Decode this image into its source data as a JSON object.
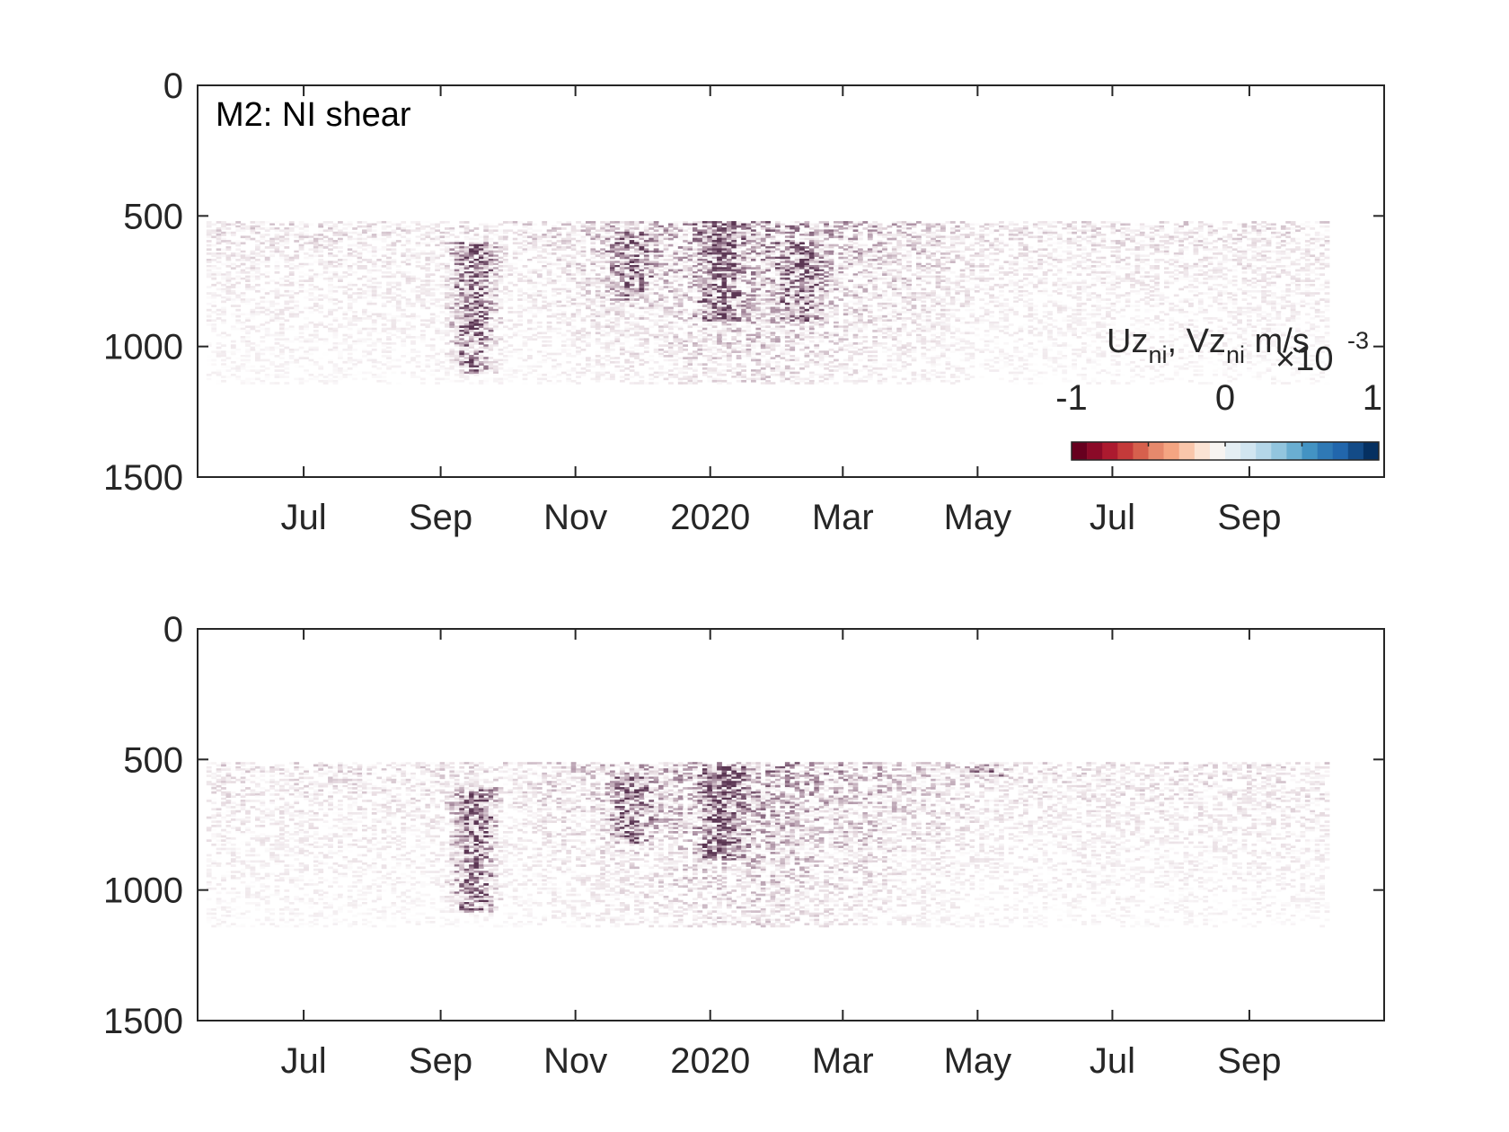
{
  "colors": {
    "axis": "#262626",
    "background": "#ffffff",
    "colormap": [
      "#67001f",
      "#8b0a28",
      "#ac1a2f",
      "#c43a3a",
      "#d6604d",
      "#e6896c",
      "#f4a582",
      "#f9c6ab",
      "#fbe3d4",
      "#f7f4f1",
      "#e4eef3",
      "#d1e5f0",
      "#b4d6e8",
      "#92c5de",
      "#6aaed1",
      "#4393c3",
      "#2f79b5",
      "#2166ac",
      "#134b87",
      "#053061"
    ],
    "data_tint_dark": "#5b3653",
    "data_tint_mid": "#a5889c",
    "data_tint_light": "#e8dde2"
  },
  "chart_data": [
    {
      "type": "heatmap",
      "title": "M2: NI shear",
      "xlabel": "",
      "ylabel": "",
      "x_ticks": [
        "Jul",
        "Sep",
        "Nov",
        "2020",
        "Mar",
        "May",
        "Jul",
        "Sep"
      ],
      "x_tick_dates": [
        "2019-07-01",
        "2019-09-01",
        "2019-11-01",
        "2020-01-01",
        "2020-03-01",
        "2020-05-01",
        "2020-07-01",
        "2020-09-01"
      ],
      "xlim": [
        "2019-05-14",
        "2020-11-01"
      ],
      "data_x_range": [
        "2019-05-18",
        "2020-10-06"
      ],
      "y_ticks": [
        "0",
        "500",
        "1000",
        "1500"
      ],
      "y_tick_values": [
        0,
        500,
        1000,
        1500
      ],
      "ylim": [
        0,
        1500
      ],
      "y_reversed": true,
      "data_y_range": [
        520,
        1140
      ],
      "grid": false,
      "colorbar": {
        "label_prefix": "Uz",
        "label_sub1": "ni",
        "label_mid": ", Vz",
        "label_sub2": "ni",
        "label_units": " m/s",
        "multiplier": "×10",
        "exponent": "-3",
        "tick_labels": [
          "-1",
          "0",
          "1"
        ],
        "tick_values": [
          -1,
          0,
          1
        ],
        "clim": [
          -1,
          1
        ],
        "placement": "inside lower-right",
        "levels": 20
      },
      "features": [
        {
          "date": "2019-09-15",
          "depth_top": 600,
          "depth_bottom": 1100,
          "strength": 1.0
        },
        {
          "date": "2020-01-05",
          "depth_top": 520,
          "depth_bottom": 900,
          "strength": 0.9
        },
        {
          "date": "2019-11-25",
          "depth_top": 560,
          "depth_bottom": 820,
          "strength": 0.7
        },
        {
          "date": "2020-02-10",
          "depth_top": 600,
          "depth_bottom": 900,
          "strength": 0.7
        }
      ]
    },
    {
      "type": "heatmap",
      "title": "",
      "xlabel": "",
      "ylabel": "",
      "x_ticks": [
        "Jul",
        "Sep",
        "Nov",
        "2020",
        "Mar",
        "May",
        "Jul",
        "Sep"
      ],
      "x_tick_dates": [
        "2019-07-01",
        "2019-09-01",
        "2019-11-01",
        "2020-01-01",
        "2020-03-01",
        "2020-05-01",
        "2020-07-01",
        "2020-09-01"
      ],
      "xlim": [
        "2019-05-14",
        "2020-11-01"
      ],
      "data_x_range": [
        "2019-05-18",
        "2020-10-06"
      ],
      "y_ticks": [
        "0",
        "500",
        "1000",
        "1500"
      ],
      "y_tick_values": [
        0,
        500,
        1000,
        1500
      ],
      "ylim": [
        0,
        1500
      ],
      "y_reversed": true,
      "data_y_range": [
        510,
        1140
      ],
      "grid": false,
      "features": [
        {
          "date": "2019-09-15",
          "depth_top": 600,
          "depth_bottom": 1080,
          "strength": 1.0
        },
        {
          "date": "2020-01-05",
          "depth_top": 520,
          "depth_bottom": 880,
          "strength": 0.9
        },
        {
          "date": "2020-05-05",
          "depth_top": 510,
          "depth_bottom": 560,
          "strength": 0.6
        },
        {
          "date": "2019-11-25",
          "depth_top": 560,
          "depth_bottom": 820,
          "strength": 0.7
        }
      ]
    }
  ]
}
